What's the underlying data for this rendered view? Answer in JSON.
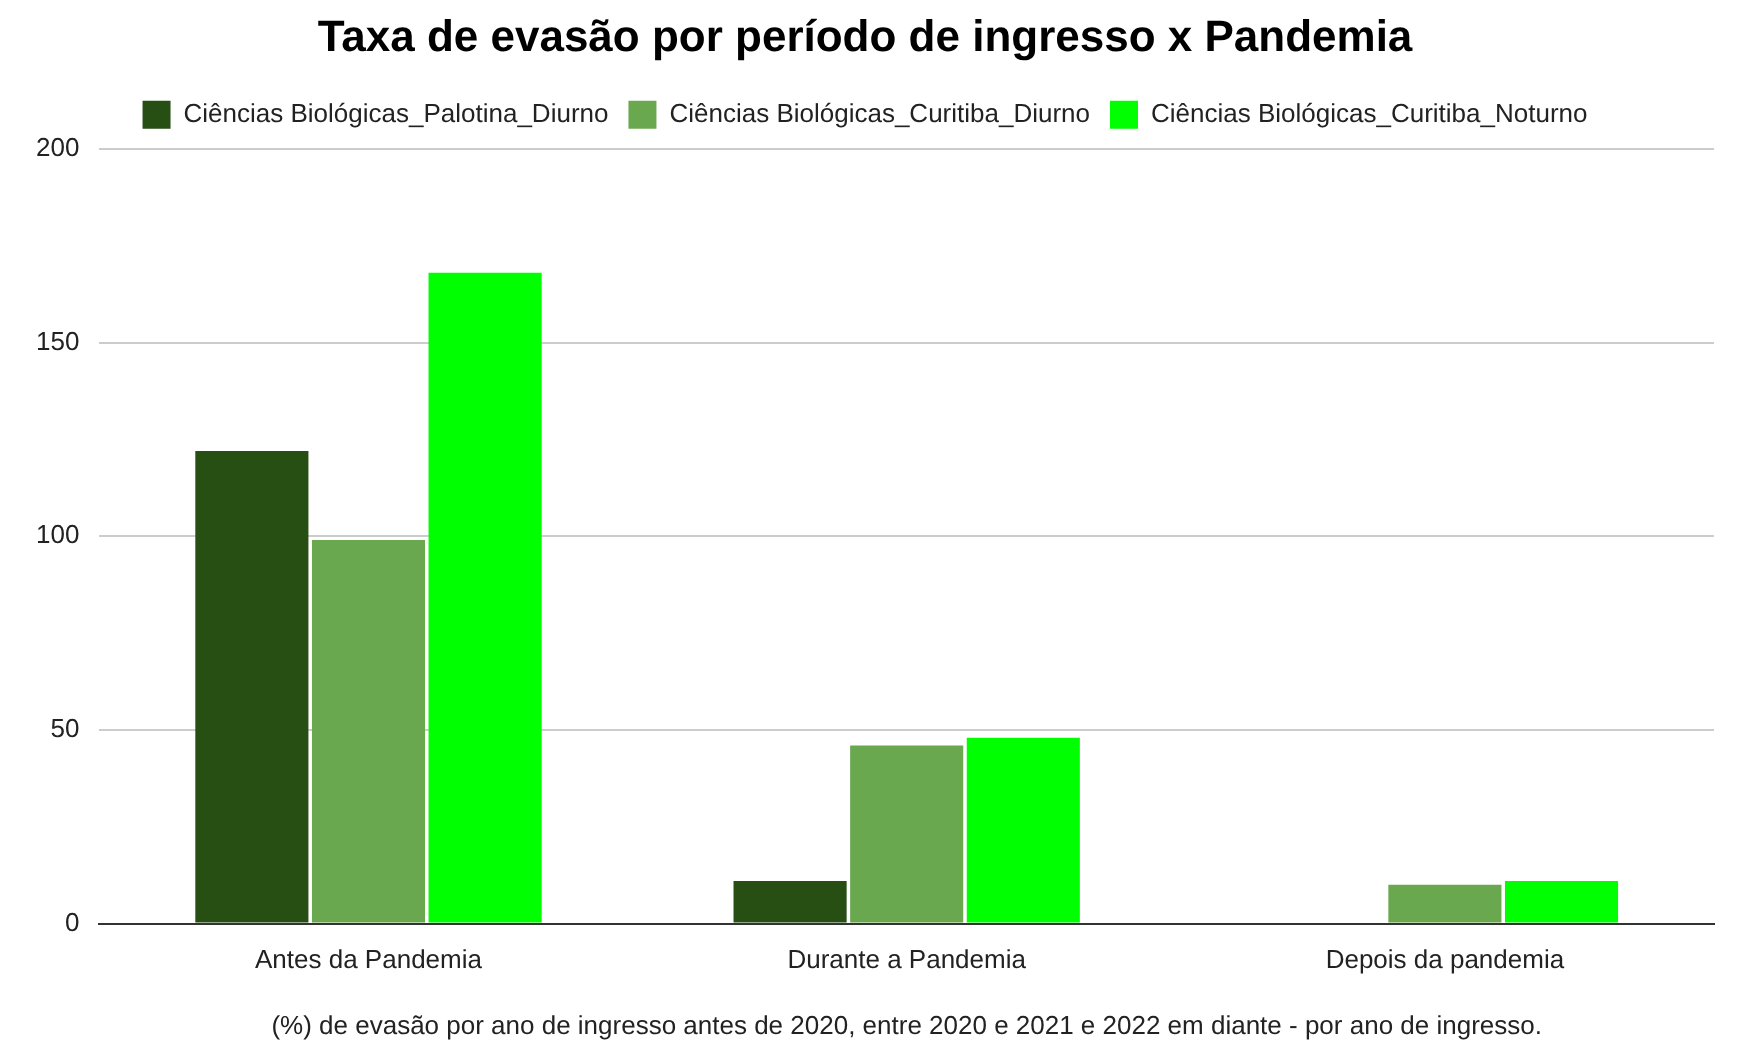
{
  "chart_data": {
    "type": "bar",
    "title": "Taxa de evasão por período de ingresso x Pandemia",
    "xlabel": "(%) de evasão por ano de ingresso antes de 2020, entre 2020 e 2021 e 2022 em diante - por ano de ingresso.",
    "categories": [
      "Antes da Pandemia",
      "Durante a Pandemia",
      "Depois da pandemia"
    ],
    "series": [
      {
        "name": "Ciências Biológicas_Palotina_Diurno",
        "color": "#274e13",
        "values": [
          122,
          11,
          0
        ]
      },
      {
        "name": "Ciências Biológicas_Curitiba_Diurno",
        "color": "#6aa84f",
        "values": [
          99,
          46,
          10
        ]
      },
      {
        "name": "Ciências Biológicas_Curitiba_Noturno",
        "color": "#00ff00",
        "values": [
          168,
          48,
          11
        ]
      }
    ],
    "ylim": [
      0,
      200
    ],
    "yticks": [
      0,
      50,
      100,
      150,
      200
    ],
    "grid": "y",
    "legend": "top"
  }
}
